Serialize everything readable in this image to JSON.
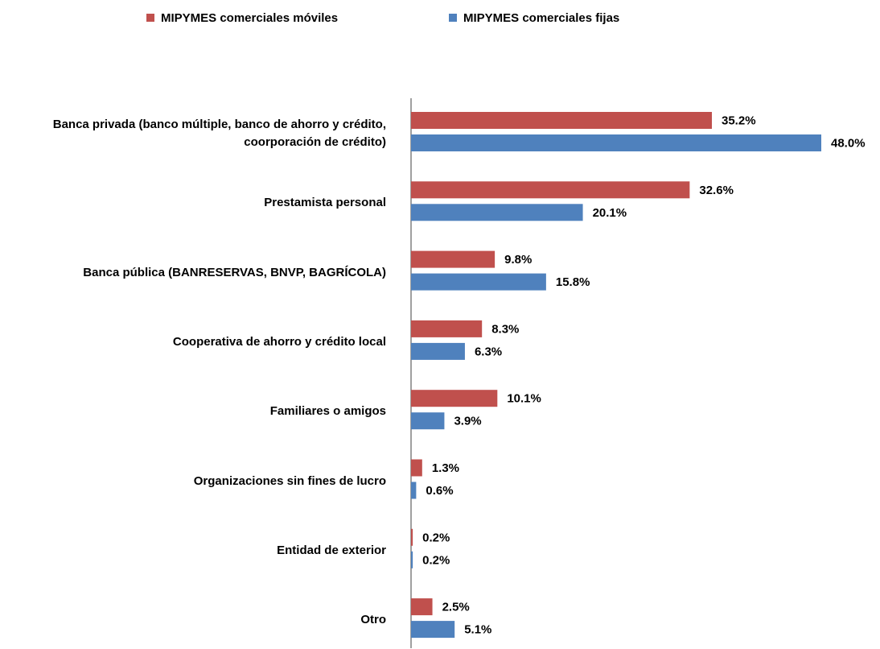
{
  "chart_data": {
    "type": "hbar",
    "categories": [
      "Banca privada (banco múltiple, banco de ahorro y crédito, coorporación de crédito)",
      "Prestamista personal",
      "Banca pública (BANRESERVAS, BNVP, BAGRÍCOLA)",
      "Cooperativa de ahorro y crédito local",
      "Familiares o amigos",
      "Organizaciones sin fines de lucro",
      "Entidad de exterior",
      "Otro"
    ],
    "series": [
      {
        "name": "MIPYMES comerciales móviles",
        "color": "#c0504d",
        "values": [
          35.2,
          32.6,
          9.8,
          8.3,
          10.1,
          1.3,
          0.2,
          2.5
        ],
        "value_labels": [
          "35.2%",
          "32.6%",
          "9.8%",
          "8.3%",
          "10.1%",
          "1.3%",
          "0.2%",
          "2.5%"
        ]
      },
      {
        "name": "MIPYMES comerciales fijas",
        "color": "#4f81bd",
        "values": [
          48.0,
          20.1,
          15.8,
          6.3,
          3.9,
          0.6,
          0.2,
          5.1
        ],
        "value_labels": [
          "48.0%",
          "20.1%",
          "15.8%",
          "6.3%",
          "3.9%",
          "0.6%",
          "0.2%",
          "5.1%"
        ]
      }
    ],
    "legend": "top"
  }
}
